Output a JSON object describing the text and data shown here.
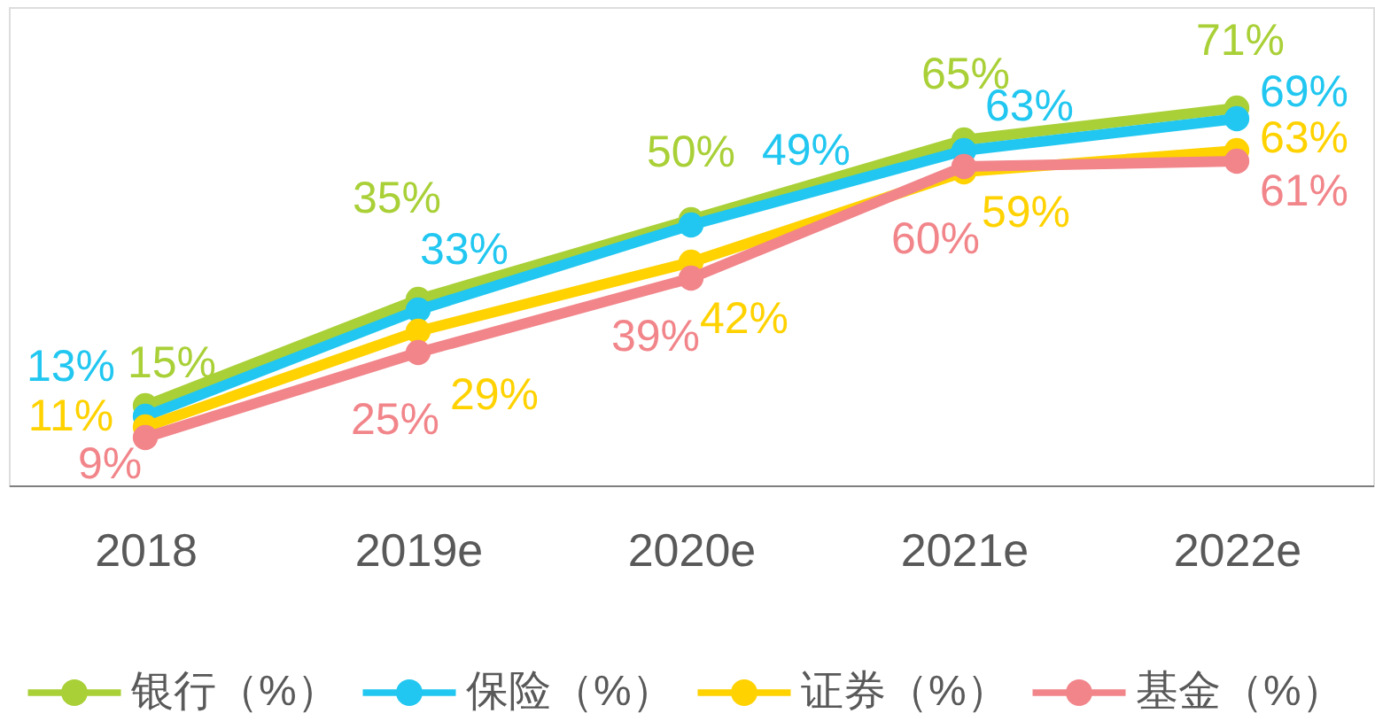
{
  "chart_data": {
    "type": "line",
    "categories": [
      "2018",
      "2019e",
      "2020e",
      "2021e",
      "2022e"
    ],
    "ylim": [
      0,
      90
    ],
    "tick_labels": "x",
    "grid": false,
    "legend": "bottom",
    "marker": "circle",
    "line_style": "solid",
    "series": [
      {
        "name": "银行（%）",
        "color": "#a9d037",
        "values": [
          15,
          35,
          50,
          65,
          71
        ],
        "value_labels": [
          "15%",
          "35%",
          "50%",
          "65%",
          "71%"
        ]
      },
      {
        "name": "保险（%）",
        "color": "#21c7f0",
        "values": [
          13,
          33,
          49,
          63,
          69
        ],
        "value_labels": [
          "13%",
          "33%",
          "49%",
          "63%",
          "69%"
        ]
      },
      {
        "name": "证券（%）",
        "color": "#ffd200",
        "values": [
          11,
          29,
          42,
          59,
          63
        ],
        "value_labels": [
          "11%",
          "29%",
          "42%",
          "59%",
          "63%"
        ]
      },
      {
        "name": "基金（%）",
        "color": "#f1858a",
        "values": [
          9,
          25,
          39,
          60,
          61
        ],
        "value_labels": [
          "9%",
          "25%",
          "39%",
          "60%",
          "61%"
        ]
      }
    ]
  }
}
